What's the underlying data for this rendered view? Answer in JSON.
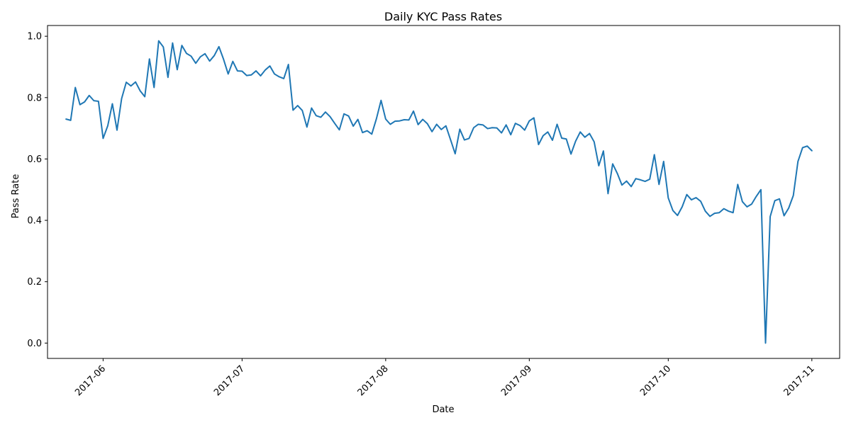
{
  "chart_data": {
    "type": "line",
    "title": "Daily KYC Pass Rates",
    "xlabel": "Date",
    "ylabel": "Pass Rate",
    "xlim": [
      "2017-05-20",
      "2017-11-07"
    ],
    "ylim": [
      -0.05,
      1.035
    ],
    "grid": false,
    "legend": "none",
    "x_ticks": [
      "2017-06-01",
      "2017-07-01",
      "2017-08-01",
      "2017-09-01",
      "2017-10-01",
      "2017-11-01"
    ],
    "x_tick_labels": [
      "2017-06",
      "2017-07",
      "2017-08",
      "2017-09",
      "2017-10",
      "2017-11"
    ],
    "y_ticks": [
      0.0,
      0.2,
      0.4,
      0.6,
      0.8,
      1.0
    ],
    "y_tick_labels": [
      "0.0",
      "0.2",
      "0.4",
      "0.6",
      "0.8",
      "1.0"
    ],
    "color": "#1f77b4",
    "series": [
      {
        "start_date": "2017-05-24",
        "values": [
          0.73,
          0.726,
          0.833,
          0.777,
          0.786,
          0.807,
          0.79,
          0.788,
          0.667,
          0.708,
          0.78,
          0.694,
          0.797,
          0.85,
          0.838,
          0.851,
          0.822,
          0.803,
          0.926,
          0.833,
          0.985,
          0.965,
          0.866,
          0.978,
          0.891,
          0.97,
          0.944,
          0.935,
          0.912,
          0.933,
          0.943,
          0.919,
          0.937,
          0.966,
          0.925,
          0.877,
          0.918,
          0.887,
          0.886,
          0.872,
          0.874,
          0.887,
          0.871,
          0.89,
          0.903,
          0.877,
          0.868,
          0.862,
          0.908,
          0.759,
          0.774,
          0.758,
          0.704,
          0.766,
          0.741,
          0.736,
          0.753,
          0.738,
          0.716,
          0.695,
          0.747,
          0.74,
          0.707,
          0.729,
          0.686,
          0.692,
          0.681,
          0.731,
          0.791,
          0.73,
          0.713,
          0.723,
          0.724,
          0.728,
          0.727,
          0.756,
          0.712,
          0.729,
          0.715,
          0.689,
          0.713,
          0.696,
          0.708,
          0.663,
          0.617,
          0.697,
          0.662,
          0.667,
          0.702,
          0.713,
          0.711,
          0.699,
          0.702,
          0.701,
          0.685,
          0.711,
          0.679,
          0.716,
          0.709,
          0.694,
          0.724,
          0.734,
          0.647,
          0.676,
          0.688,
          0.661,
          0.713,
          0.668,
          0.665,
          0.616,
          0.658,
          0.688,
          0.671,
          0.683,
          0.656,
          0.578,
          0.626,
          0.487,
          0.584,
          0.553,
          0.515,
          0.528,
          0.51,
          0.536,
          0.532,
          0.527,
          0.534,
          0.614,
          0.517,
          0.592,
          0.473,
          0.432,
          0.416,
          0.444,
          0.484,
          0.467,
          0.474,
          0.462,
          0.43,
          0.413,
          0.423,
          0.425,
          0.438,
          0.43,
          0.425,
          0.517,
          0.461,
          0.444,
          0.453,
          0.478,
          0.5,
          0.0,
          0.412,
          0.464,
          0.47,
          0.415,
          0.44,
          0.481,
          0.592,
          0.637,
          0.642,
          0.627
        ]
      }
    ]
  }
}
